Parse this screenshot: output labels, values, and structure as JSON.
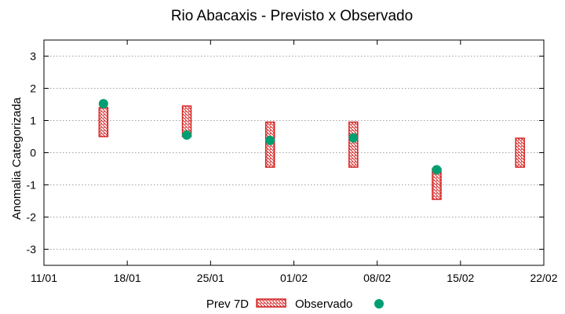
{
  "chart_data": {
    "type": "floating-bar+scatter",
    "title": "Rio Abacaxis - Previsto x Observado",
    "xlabel": "",
    "ylabel": "Anomalia Categorizada",
    "xlim_days": [
      0,
      42
    ],
    "ylim": [
      -3.5,
      3.5
    ],
    "x_ticks": [
      {
        "day": 0,
        "label": "11/01"
      },
      {
        "day": 7,
        "label": "18/01"
      },
      {
        "day": 14,
        "label": "25/01"
      },
      {
        "day": 21,
        "label": "01/02"
      },
      {
        "day": 28,
        "label": "08/02"
      },
      {
        "day": 35,
        "label": "15/02"
      },
      {
        "day": 42,
        "label": "22/02"
      }
    ],
    "y_ticks": [
      {
        "value": 3,
        "label": "3"
      },
      {
        "value": 2,
        "label": "2"
      },
      {
        "value": 1,
        "label": "1"
      },
      {
        "value": 0,
        "label": "0"
      },
      {
        "value": -1,
        "label": "-1"
      },
      {
        "value": -2,
        "label": "-2"
      },
      {
        "value": -3,
        "label": "-3"
      }
    ],
    "grid": true,
    "series": [
      {
        "name": "Prev 7D",
        "kind": "range-bar",
        "color": "#d62020",
        "points": [
          {
            "day": 5,
            "low": 0.5,
            "high": 1.4
          },
          {
            "day": 12,
            "low": 0.5,
            "high": 1.45
          },
          {
            "day": 19,
            "low": -0.45,
            "high": 0.95
          },
          {
            "day": 26,
            "low": -0.45,
            "high": 0.95
          },
          {
            "day": 33,
            "low": -1.45,
            "high": -0.5
          },
          {
            "day": 40,
            "low": -0.45,
            "high": 0.45
          }
        ]
      },
      {
        "name": "Observado",
        "kind": "scatter",
        "color": "#009e73",
        "points": [
          {
            "day": 5,
            "value": 1.52
          },
          {
            "day": 12,
            "value": 0.55
          },
          {
            "day": 19,
            "value": 0.38
          },
          {
            "day": 26,
            "value": 0.46
          },
          {
            "day": 33,
            "value": -0.53
          }
        ]
      }
    ],
    "legend": {
      "placement": "bottom-center",
      "labels": [
        "Prev 7D",
        "Observado"
      ]
    }
  }
}
